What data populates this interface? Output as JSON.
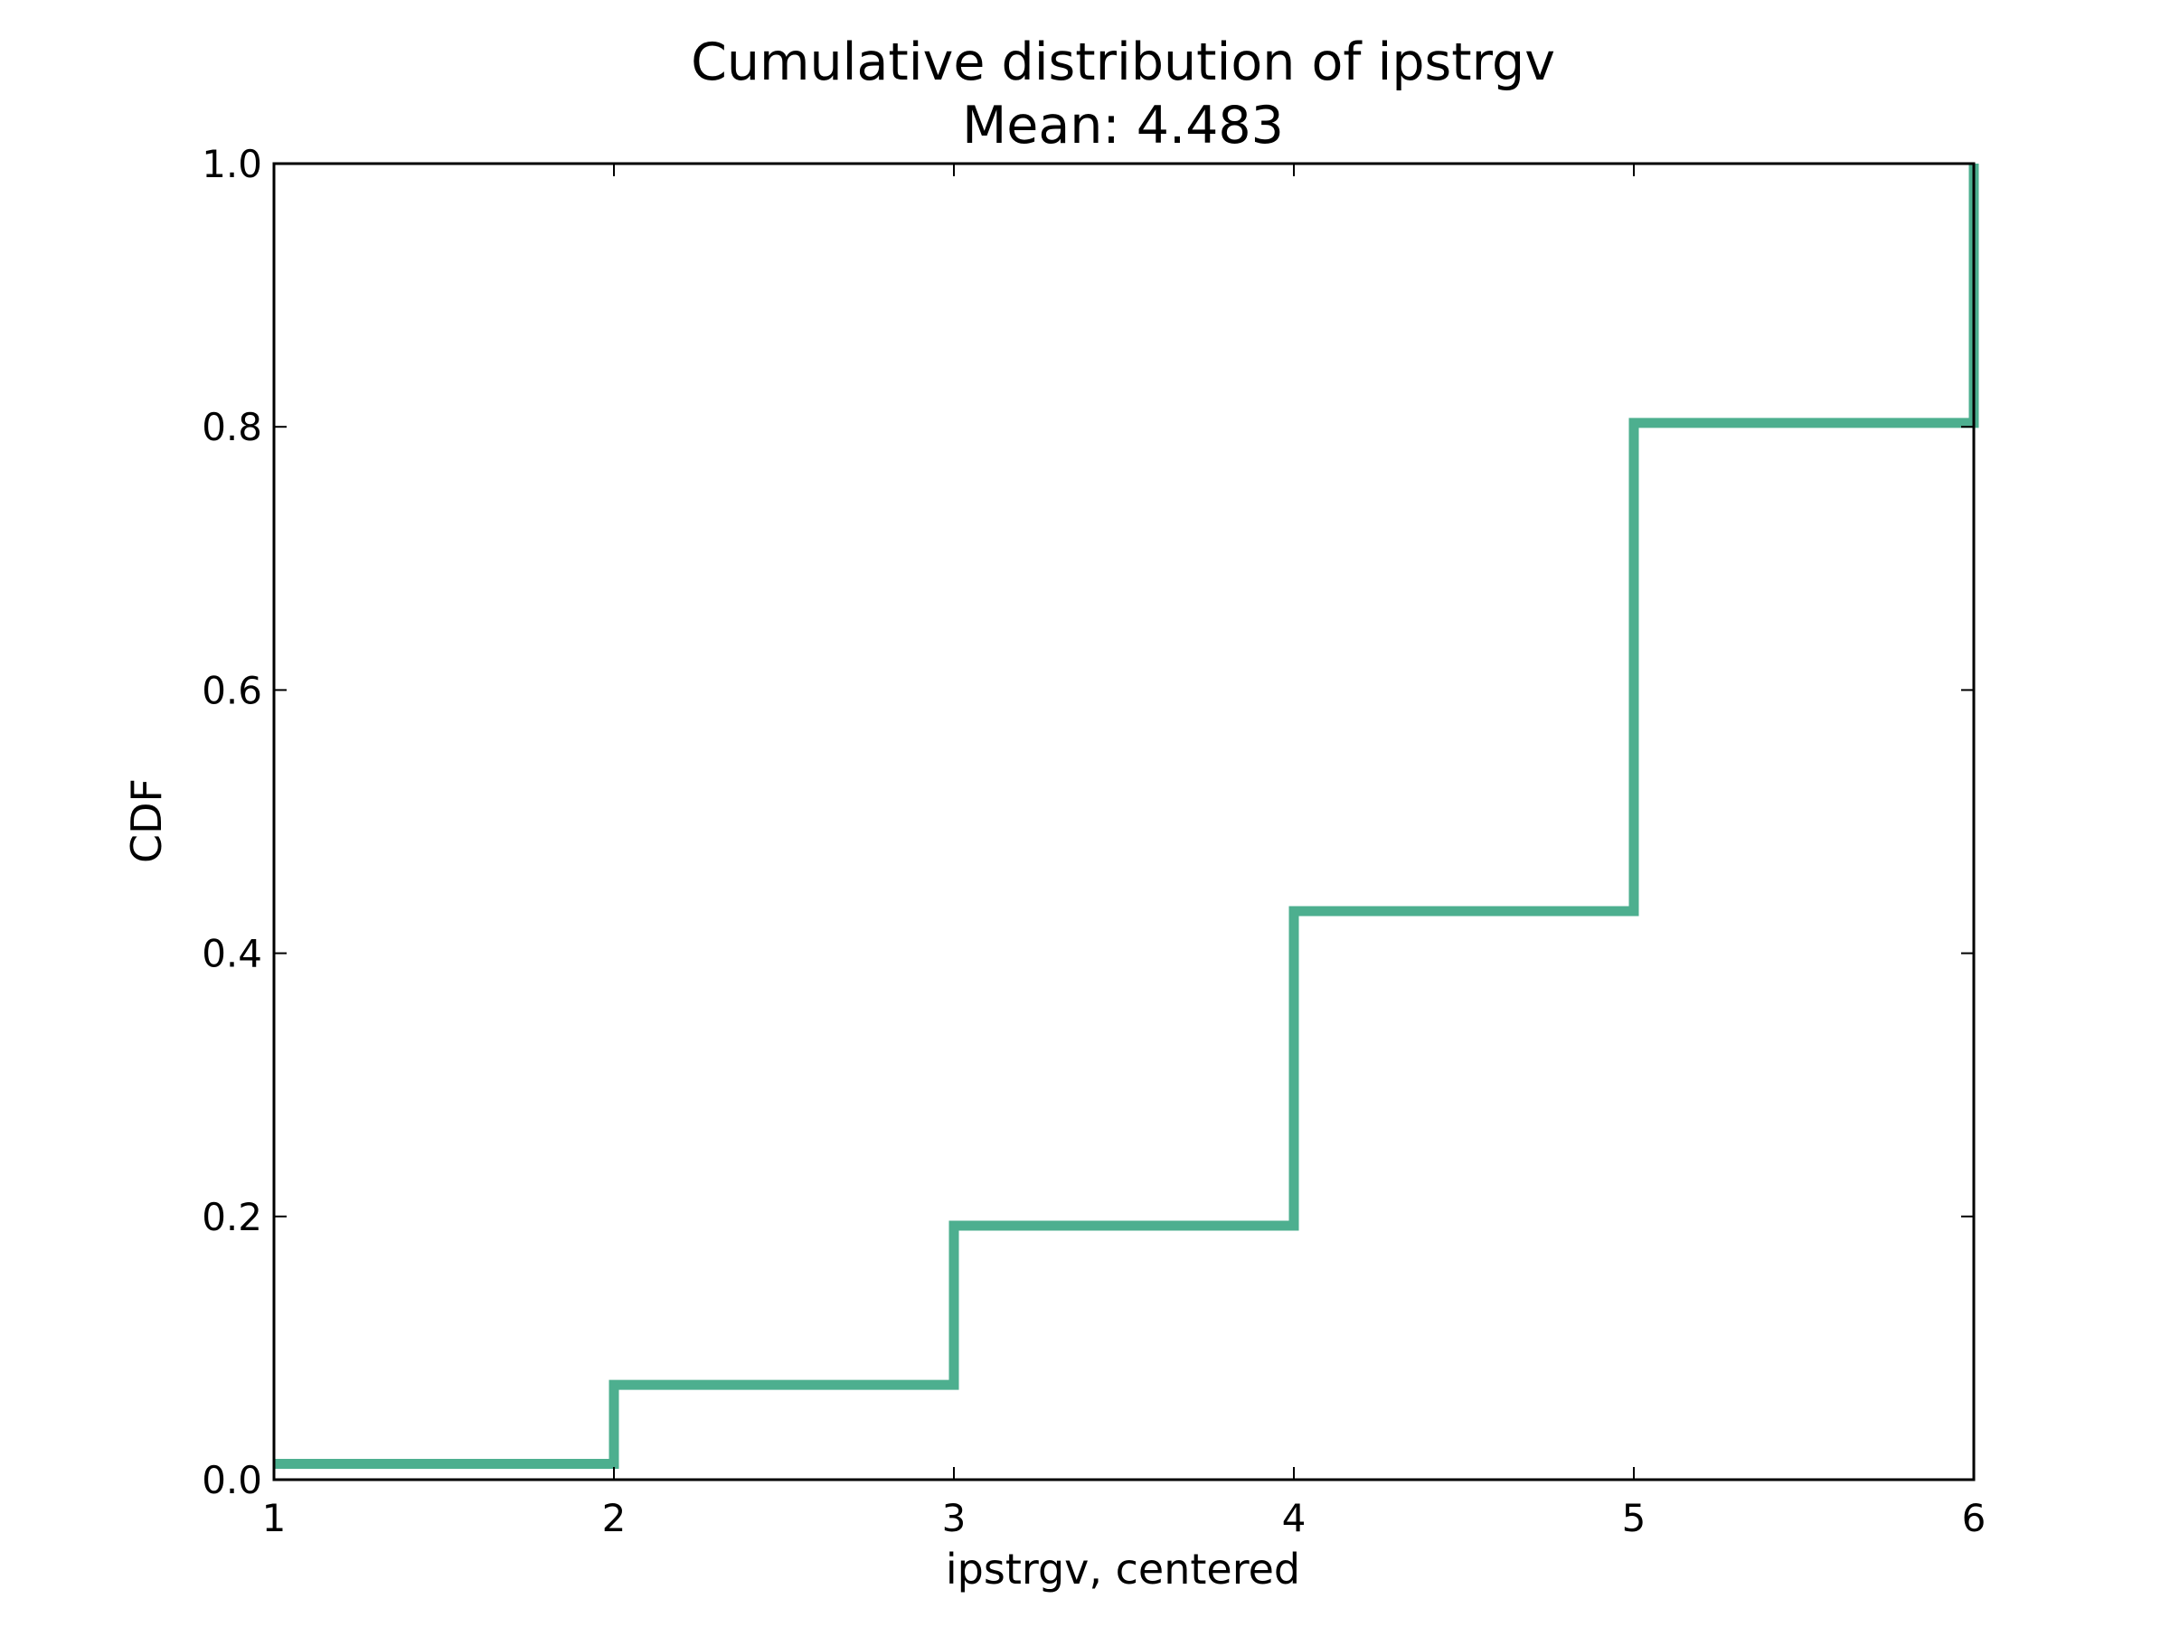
{
  "chart_data": {
    "type": "line",
    "drawstyle": "step",
    "title": "Cumulative distribution of ipstrgv",
    "subtitle": "Mean: 4.483",
    "xlabel": "ipstrgv, centered",
    "ylabel": "CDF",
    "xlim": [
      1,
      6
    ],
    "ylim": [
      0.0,
      1.0
    ],
    "xticks": [
      1,
      2,
      3,
      4,
      5,
      6
    ],
    "xtick_labels": [
      "1",
      "2",
      "3",
      "4",
      "5",
      "6"
    ],
    "yticks": [
      0.0,
      0.2,
      0.4,
      0.6,
      0.8,
      1.0
    ],
    "ytick_labels": [
      "0.0",
      "0.2",
      "0.4",
      "0.6",
      "0.8",
      "1.0"
    ],
    "grid": false,
    "series": [
      {
        "color": "#4daf8f",
        "x": [
          1,
          2,
          3,
          4,
          5,
          6
        ],
        "y": [
          0.012,
          0.072,
          0.193,
          0.432,
          0.803,
          1.0
        ]
      }
    ]
  }
}
